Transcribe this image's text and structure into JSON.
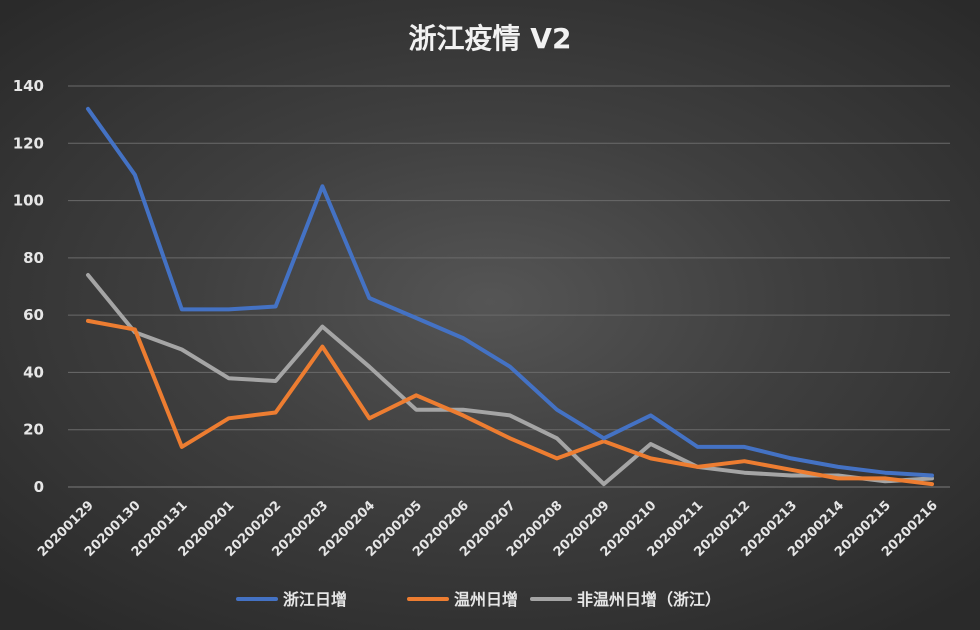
{
  "chart_data": {
    "type": "line",
    "title": "浙江疫情 V2",
    "xlabel": "",
    "ylabel": "",
    "categories": [
      "20200129",
      "20200130",
      "20200131",
      "20200201",
      "20200202",
      "20200203",
      "20200204",
      "20200205",
      "20200206",
      "20200207",
      "20200208",
      "20200209",
      "20200210",
      "20200211",
      "20200212",
      "20200213",
      "20200214",
      "20200215",
      "20200216"
    ],
    "ylim": [
      0,
      140
    ],
    "yticks": [
      0,
      20,
      40,
      60,
      80,
      100,
      120,
      140
    ],
    "grid": true,
    "legend_position": "bottom",
    "series": [
      {
        "name": "浙江日增",
        "color": "#4472c4",
        "values": [
          132,
          109,
          62,
          62,
          63,
          105,
          66,
          59,
          52,
          42,
          27,
          17,
          25,
          14,
          14,
          10,
          7,
          5,
          4
        ]
      },
      {
        "name": "温州日增",
        "color": "#ed7d31",
        "values": [
          58,
          55,
          14,
          24,
          26,
          49,
          24,
          32,
          25,
          17,
          10,
          16,
          10,
          7,
          9,
          6,
          3,
          3,
          1
        ]
      },
      {
        "name": "非温州日增（浙江）",
        "color": "#a5a5a5",
        "values": [
          74,
          54,
          48,
          38,
          37,
          56,
          42,
          27,
          27,
          25,
          17,
          1,
          15,
          7,
          5,
          4,
          4,
          2,
          3
        ]
      }
    ]
  }
}
